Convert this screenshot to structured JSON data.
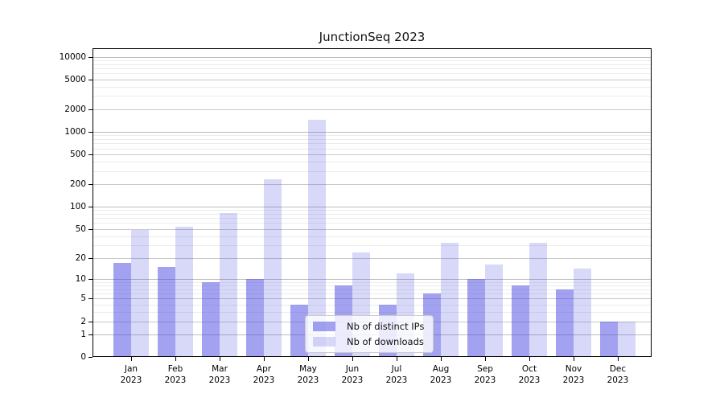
{
  "title": "JunctionSeq 2023",
  "chart_data": {
    "type": "bar",
    "title": "JunctionSeq 2023",
    "xlabel": "",
    "ylabel": "",
    "yscale": "log1p",
    "grid": true,
    "legend_position": "lower center",
    "ylim": [
      0,
      13000
    ],
    "yticks": [
      0,
      1,
      2,
      5,
      10,
      20,
      50,
      100,
      200,
      500,
      1000,
      2000,
      5000,
      10000
    ],
    "categories": [
      "Jan 2023",
      "Feb 2023",
      "Mar 2023",
      "Apr 2023",
      "May 2023",
      "Jun 2023",
      "Jul 2023",
      "Aug 2023",
      "Sep 2023",
      "Oct 2023",
      "Nov 2023",
      "Dec 2023"
    ],
    "series": [
      {
        "name": "Nb of distinct IPs",
        "color": "#a3a3ef",
        "fill": "rgba(70,70,225,0.5)",
        "values": [
          17,
          15,
          9,
          10,
          4,
          8,
          4,
          6,
          10,
          8,
          7,
          2
        ]
      },
      {
        "name": "Nb of downloads",
        "color": "#d8d8f8",
        "fill": "rgba(70,70,225,0.21)",
        "values": [
          48,
          54,
          81,
          232,
          1450,
          24,
          12,
          32,
          16,
          32,
          14,
          2
        ]
      }
    ]
  }
}
